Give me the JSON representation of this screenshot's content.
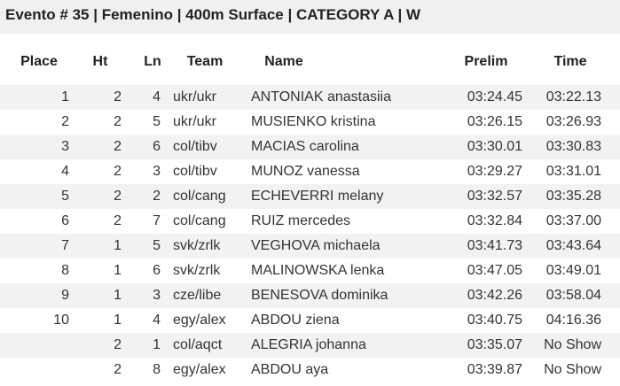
{
  "header": {
    "title": "Evento # 35 | Femenino | 400m Surface | CATEGORY A | W"
  },
  "table": {
    "columns": [
      "Place",
      "Ht",
      "Ln",
      "Team",
      "Name",
      "Prelim",
      "Time"
    ],
    "rows": [
      [
        "1",
        "2",
        "4",
        "ukr/ukr",
        "ANTONIAK anastasiia",
        "03:24.45",
        "03:22.13"
      ],
      [
        "2",
        "2",
        "5",
        "ukr/ukr",
        "MUSIENKO kristina",
        "03:26.15",
        "03:26.93"
      ],
      [
        "3",
        "2",
        "6",
        "col/tibv",
        "MACIAS carolina",
        "03:30.01",
        "03:30.83"
      ],
      [
        "4",
        "2",
        "3",
        "col/tibv",
        "MUNOZ vanessa",
        "03:29.27",
        "03:31.01"
      ],
      [
        "5",
        "2",
        "2",
        "col/cang",
        "ECHEVERRI melany",
        "03:32.57",
        "03:35.28"
      ],
      [
        "6",
        "2",
        "7",
        "col/cang",
        "RUIZ mercedes",
        "03:32.84",
        "03:37.00"
      ],
      [
        "7",
        "1",
        "5",
        "svk/zrlk",
        "VEGHOVA michaela",
        "03:41.73",
        "03:43.64"
      ],
      [
        "8",
        "1",
        "6",
        "svk/zrlk",
        "MALINOWSKA lenka",
        "03:47.05",
        "03:49.01"
      ],
      [
        "9",
        "1",
        "3",
        "cze/libe",
        "BENESOVA dominika",
        "03:42.26",
        "03:58.04"
      ],
      [
        "10",
        "1",
        "4",
        "egy/alex",
        "ABDOU ziena",
        "03:40.75",
        "04:16.36"
      ],
      [
        null,
        "2",
        "1",
        "col/aqct",
        "ALEGRIA johanna",
        "03:35.07",
        "No Show"
      ],
      [
        null,
        "2",
        "8",
        "egy/alex",
        "ABDOU aya",
        "03:39.87",
        "No Show"
      ]
    ]
  }
}
